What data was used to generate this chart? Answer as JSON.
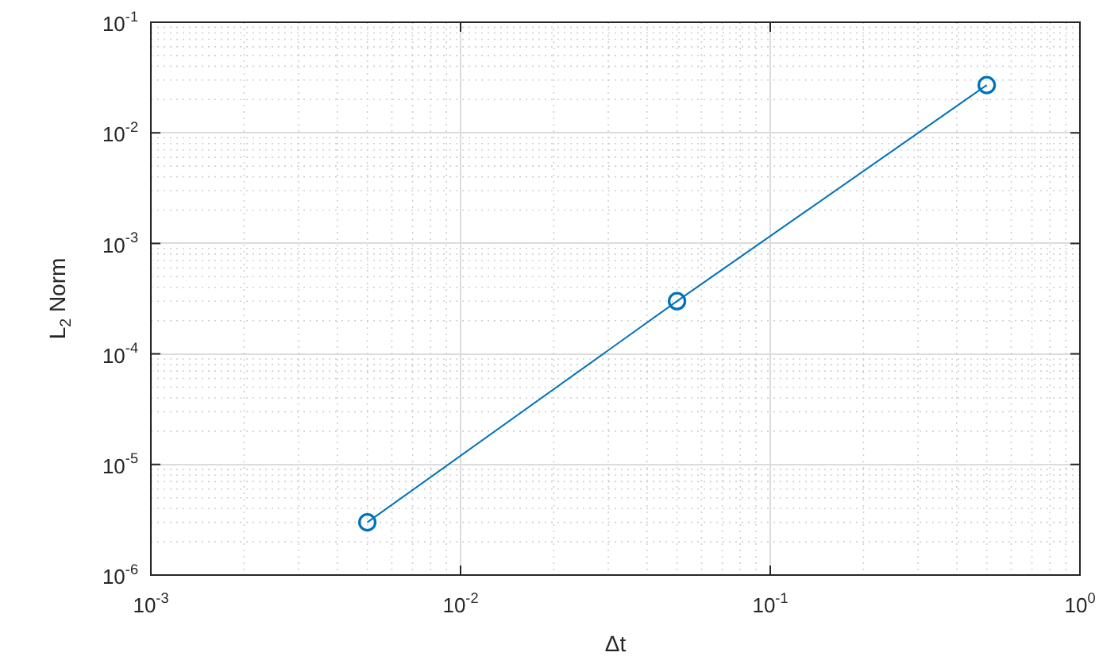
{
  "chart_data": {
    "type": "line",
    "xlabel": "Δt",
    "ylabel": "L$_{2}$ Norm",
    "x": [
      0.005,
      0.05,
      0.5
    ],
    "series": [
      {
        "color": "#0072bd",
        "values": [
          3e-06,
          0.0003,
          0.027
        ]
      }
    ],
    "log": "xy",
    "grid": true,
    "marker": "circle",
    "line_style": "solid",
    "legend": false,
    "xlim": [
      0.001,
      1
    ],
    "ylim": [
      1e-06,
      0.1
    ],
    "xticks": [
      {
        "value": 0.001,
        "label": "10$^{-3}$"
      },
      {
        "value": 0.01,
        "label": "10$^{-2}$"
      },
      {
        "value": 0.1,
        "label": "10$^{-1}$"
      },
      {
        "value": 1,
        "label": "10$^{0}$"
      }
    ],
    "yticks": [
      {
        "value": 1e-06,
        "label": "10$^{-6}$"
      },
      {
        "value": 1e-05,
        "label": "10$^{-5}$"
      },
      {
        "value": 0.0001,
        "label": "10$^{-4}$"
      },
      {
        "value": 0.001,
        "label": "10$^{-3}$"
      },
      {
        "value": 0.01,
        "label": "10$^{-2}$"
      },
      {
        "value": 0.1,
        "label": "10$^{-1}$"
      }
    ]
  }
}
